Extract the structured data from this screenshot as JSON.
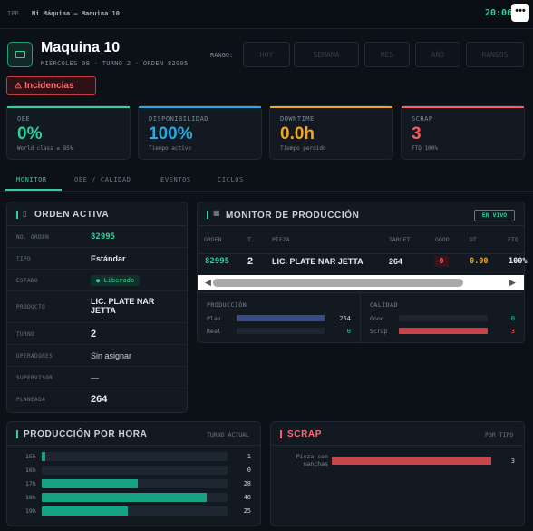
{
  "topbar": {
    "app": "IPP",
    "breadcrumb": "Mi Máquina — Maquina 10",
    "clock": "20:06",
    "menu": "•••"
  },
  "header": {
    "title": "Maquina 10",
    "subtitle": "MIÉRCOLES 08 · TURNO 2 · ORDEN 82995",
    "range_label": "RANGO:",
    "range_options": [
      "HOY",
      "SEMANA",
      "MES",
      "AÑO",
      "RANGOS"
    ],
    "incidencias": "Incidencias"
  },
  "kpis": [
    {
      "label": "OEE",
      "value": "0%",
      "sub": "World class ≥ 85%",
      "color": "#2fd19c"
    },
    {
      "label": "DISPONIBILIDAD",
      "value": "100%",
      "sub": "Tiempo activo",
      "color": "#2aa8e0"
    },
    {
      "label": "DOWNTIME",
      "value": "0.0h",
      "sub": "Tiempo perdido",
      "color": "#f0a623"
    },
    {
      "label": "SCRAP",
      "value": "3",
      "sub": "FTQ 100%",
      "color": "#ff5a64"
    }
  ],
  "tabs": [
    "MONITOR",
    "OEE / CALIDAD",
    "EVENTOS",
    "CICLOS"
  ],
  "orden": {
    "title": "ORDEN ACTIVA",
    "rows": [
      {
        "k": "NO. ORDEN",
        "v": "82995"
      },
      {
        "k": "TIPO",
        "v": "Estándar"
      },
      {
        "k": "ESTADO",
        "v": "Liberado"
      },
      {
        "k": "PRODUCTO",
        "v": "LIC. PLATE NAR JETTA"
      },
      {
        "k": "TURNO",
        "v": "2"
      },
      {
        "k": "OPERADORES",
        "v": "Sin asignar"
      },
      {
        "k": "SUPERVISOR",
        "v": "—"
      },
      {
        "k": "PLANEADA",
        "v": "264"
      }
    ]
  },
  "monitor": {
    "title": "MONITOR DE PRODUCCIÓN",
    "live": "EN VIVO",
    "columns": [
      "ORDEN",
      "T.",
      "PIEZA",
      "TARGET",
      "GOOD",
      "DT",
      "FTQ"
    ],
    "row": {
      "orden": "82995",
      "t": "2",
      "pieza": "LIC. PLATE NAR JETTA",
      "target": "264",
      "good": "0",
      "dt": "0.00",
      "ftq": "100%"
    },
    "produccion": {
      "label": "PRODUCCIÓN",
      "plan_label": "Plan",
      "plan": 264,
      "real_label": "Real",
      "real": 0
    },
    "calidad": {
      "label": "CALIDAD",
      "good_label": "Good",
      "good": 0,
      "scrap_label": "Scrap",
      "scrap": 3
    }
  },
  "por_hora": {
    "title": "PRODUCCIÓN POR HORA",
    "tag": "TURNO ACTUAL",
    "max": 54,
    "rows": [
      {
        "h": "15h",
        "v": 1
      },
      {
        "h": "16h",
        "v": 0
      },
      {
        "h": "17h",
        "v": 28
      },
      {
        "h": "18h",
        "v": 48
      },
      {
        "h": "19h",
        "v": 25
      }
    ]
  },
  "scrap": {
    "title": "SCRAP",
    "tag": "POR TIPO",
    "rows": [
      {
        "label": "Pieza con manchas",
        "v": 3
      }
    ]
  }
}
